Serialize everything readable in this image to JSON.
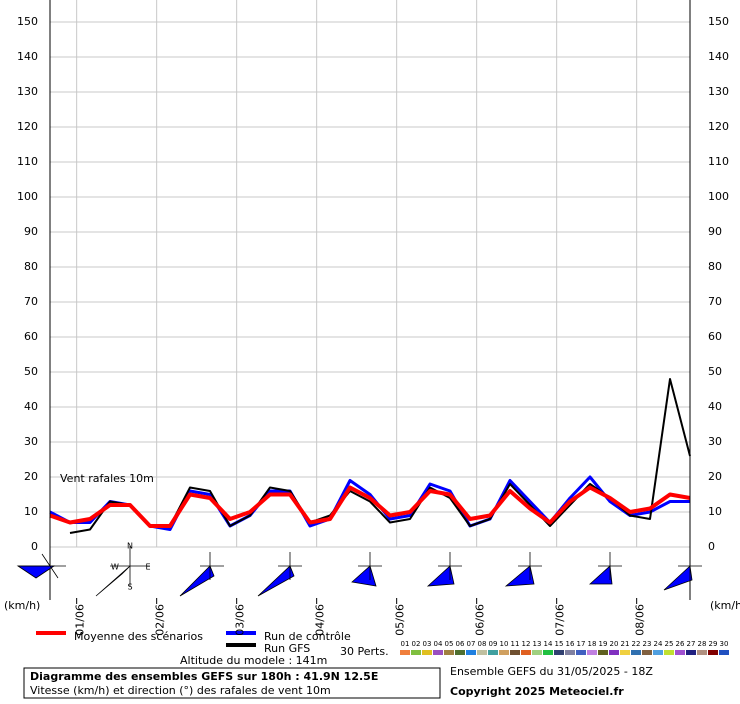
{
  "chart_data": {
    "type": "line",
    "annotation": "Vent rafales 10m",
    "y_unit_left": "(km/h)",
    "y_unit_right": "(km/h)",
    "x": [
      0,
      6,
      12,
      18,
      24,
      30,
      36,
      42,
      48,
      54,
      60,
      66,
      72,
      78,
      84,
      90,
      96,
      102,
      108,
      114,
      120,
      126,
      132,
      138,
      144,
      150,
      156,
      162,
      168,
      174,
      180,
      186,
      192
    ],
    "xlim": [
      0,
      192
    ],
    "xticks": [
      {
        "value": 8,
        "label": "01/06"
      },
      {
        "value": 32,
        "label": "02/06"
      },
      {
        "value": 56,
        "label": "03/06"
      },
      {
        "value": 80,
        "label": "04/06"
      },
      {
        "value": 104,
        "label": "05/06"
      },
      {
        "value": 128,
        "label": "06/06"
      },
      {
        "value": 152,
        "label": "07/06"
      },
      {
        "value": 176,
        "label": "08/06"
      }
    ],
    "ylim": [
      0,
      150
    ],
    "yticks": [
      0,
      10,
      20,
      30,
      40,
      50,
      60,
      70,
      80,
      90,
      100,
      110,
      120,
      130,
      140,
      150
    ],
    "grid": true,
    "series": [
      {
        "name": "Run de contrôle",
        "color": "#0000ff",
        "width": 3,
        "values": [
          10,
          7,
          7,
          13,
          12,
          6,
          5,
          16,
          15,
          6,
          9,
          16,
          16,
          6,
          8,
          19,
          15,
          8,
          9,
          18,
          16,
          6,
          8,
          19,
          13,
          7,
          14,
          20,
          13,
          9,
          10,
          13,
          13
        ]
      },
      {
        "name": "Run GFS",
        "color": "#000000",
        "width": 2,
        "values": [
          null,
          4,
          5,
          13,
          12,
          6,
          6,
          17,
          16,
          6,
          9,
          17,
          16,
          7,
          9,
          16,
          13,
          7,
          8,
          17,
          14,
          6,
          8,
          18,
          12,
          6,
          12,
          18,
          14,
          9,
          8,
          48,
          26
        ]
      },
      {
        "name": "Moyenne des scénarios",
        "color": "#ff0000",
        "width": 4,
        "values": [
          9,
          7,
          8,
          12,
          12,
          6,
          6,
          15,
          14,
          8,
          10,
          15,
          15,
          7,
          8,
          17,
          14,
          9,
          10,
          16,
          15,
          8,
          9,
          16,
          11,
          7,
          13,
          17,
          14,
          10,
          11,
          15,
          14
        ]
      }
    ],
    "perturbations_label": "30 Perts.",
    "perturbations": [
      {
        "name": "01",
        "color": "#f07f3c"
      },
      {
        "name": "02",
        "color": "#7fbf3f"
      },
      {
        "name": "03",
        "color": "#e0c020"
      },
      {
        "name": "04",
        "color": "#9a4fc0"
      },
      {
        "name": "05",
        "color": "#a08040"
      },
      {
        "name": "06",
        "color": "#4f6f2f"
      },
      {
        "name": "07",
        "color": "#2080e0"
      },
      {
        "name": "08",
        "color": "#c0c0a0"
      },
      {
        "name": "09",
        "color": "#40a0a0"
      },
      {
        "name": "10",
        "color": "#d0a060"
      },
      {
        "name": "11",
        "color": "#705030"
      },
      {
        "name": "12",
        "color": "#e06020"
      },
      {
        "name": "13",
        "color": "#a0d080"
      },
      {
        "name": "14",
        "color": "#20c040"
      },
      {
        "name": "15",
        "color": "#304070"
      },
      {
        "name": "16",
        "color": "#8080a0"
      },
      {
        "name": "17",
        "color": "#4060c0"
      },
      {
        "name": "18",
        "color": "#c080e0"
      },
      {
        "name": "19",
        "color": "#606020"
      },
      {
        "name": "20",
        "color": "#8030c0"
      },
      {
        "name": "21",
        "color": "#f0d040"
      },
      {
        "name": "22",
        "color": "#3070b0"
      },
      {
        "name": "23",
        "color": "#806040"
      },
      {
        "name": "24",
        "color": "#50a0e0"
      },
      {
        "name": "25",
        "color": "#c0e030"
      },
      {
        "name": "26",
        "color": "#a050d0"
      },
      {
        "name": "27",
        "color": "#202080"
      },
      {
        "name": "28",
        "color": "#b09080"
      },
      {
        "name": "29",
        "color": "#800000"
      },
      {
        "name": "30",
        "color": "#2050c0"
      }
    ],
    "model_altitude": "Altitude du modele : 141m"
  },
  "compass": [
    "N",
    "W",
    "E",
    "S"
  ],
  "footer": {
    "title": "Diagramme des ensembles GEFS sur 180h : 41.9N 12.5E",
    "subtitle": "Vitesse (km/h) et direction (°) des rafales de vent 10m",
    "run": "Ensemble GEFS du 31/05/2025 - 18Z",
    "copyright": "Copyright 2025 Meteociel.fr"
  }
}
